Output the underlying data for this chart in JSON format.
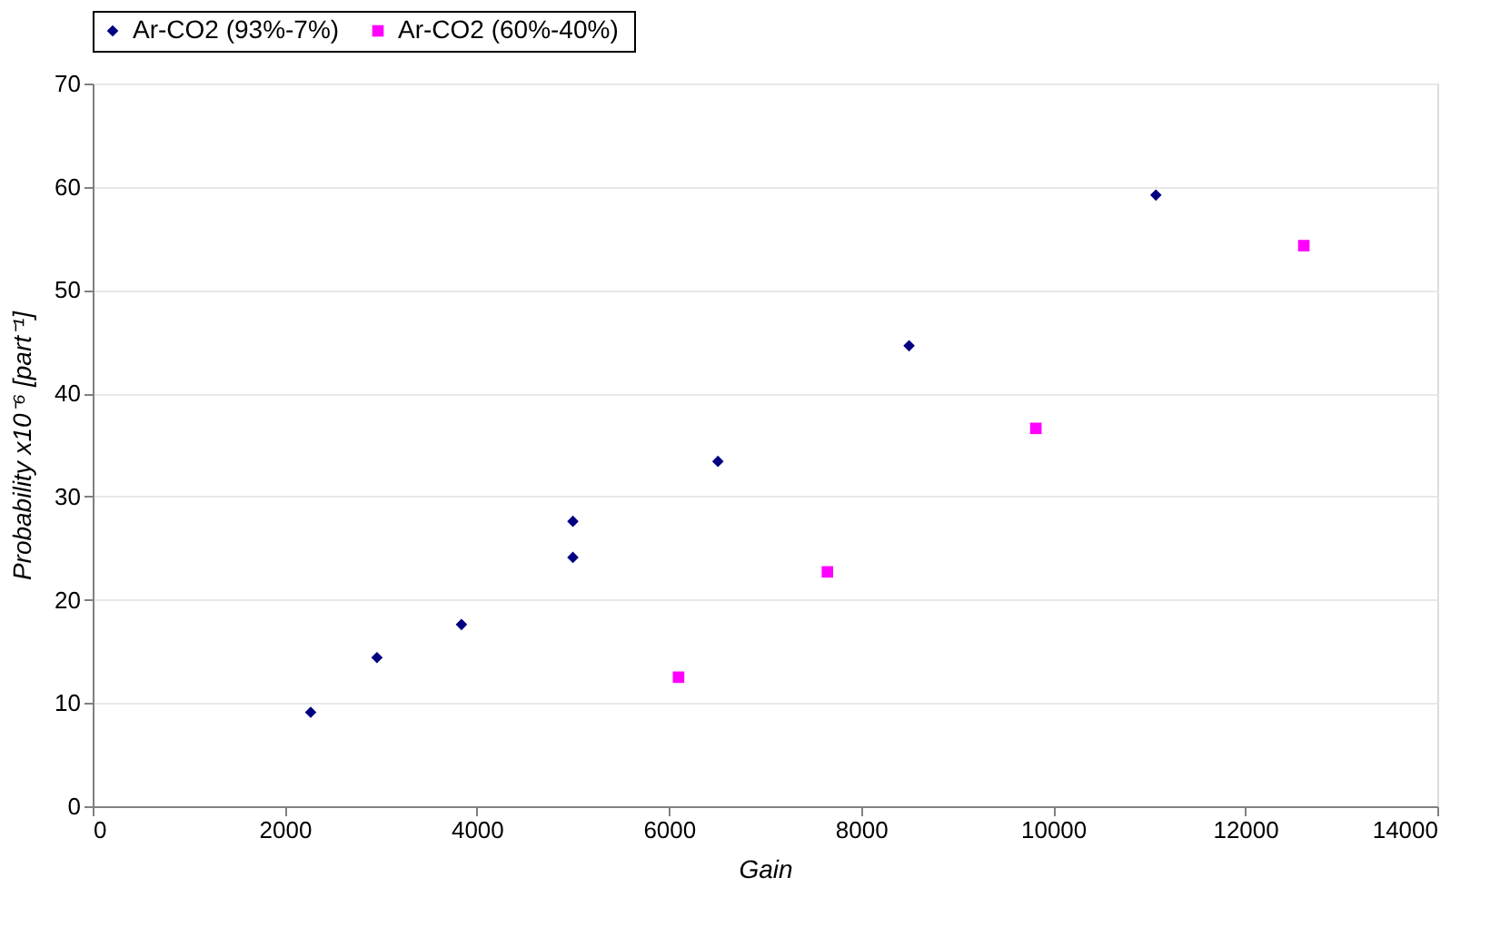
{
  "chart_data": {
    "type": "scatter",
    "xlabel": "Gain",
    "ylabel": "Probability  x10⁻⁶  [part⁻¹]",
    "series": [
      {
        "name": "Ar-CO2  (93%-7%)",
        "color": "#000080",
        "marker": "diamond",
        "x": [
          2270,
          2960,
          3840,
          5000,
          5000,
          6510,
          8500,
          11070
        ],
        "values": [
          9.1,
          14.4,
          17.6,
          27.6,
          24.1,
          33.4,
          44.6,
          59.2
        ]
      },
      {
        "name": "Ar-CO2  (60%-40%)",
        "color": "#ff00ff",
        "marker": "square",
        "x": [
          6100,
          7650,
          9820,
          12610
        ],
        "values": [
          12.5,
          22.7,
          36.6,
          54.3
        ]
      }
    ],
    "xlim": [
      0,
      14000
    ],
    "xticks": [
      0,
      2000,
      4000,
      6000,
      8000,
      10000,
      12000,
      14000
    ],
    "ylim": [
      0,
      70
    ],
    "yticks": [
      0,
      10,
      20,
      30,
      40,
      50,
      60,
      70
    ],
    "grid": "y",
    "legend": "top"
  }
}
